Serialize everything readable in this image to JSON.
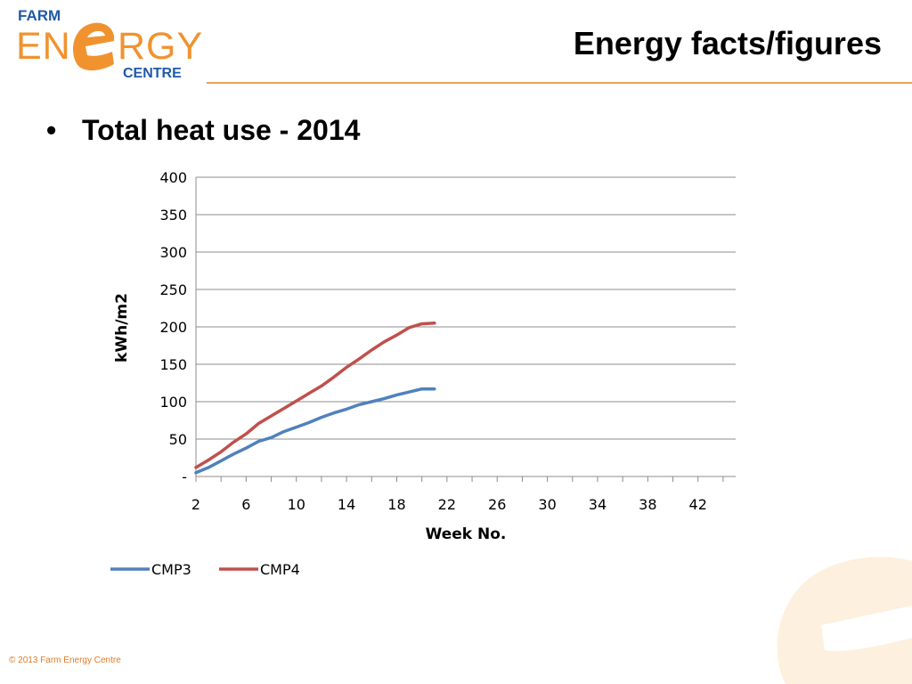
{
  "logo": {
    "line1": "FARM",
    "line2_left": "EN",
    "line2_right": "RGY",
    "line3": "CENTRE"
  },
  "header": {
    "title": "Energy facts/figures"
  },
  "bullet": {
    "symbol": "•",
    "text": "Total heat use - 2014"
  },
  "footer": {
    "copyright": "© 2013 Farm Energy Centre"
  },
  "colors": {
    "brand_orange": "#f0932f",
    "brand_blue": "#1f5aa6",
    "cmp3": "#4f81bd",
    "cmp4": "#c0504d"
  },
  "chart_data": {
    "type": "line",
    "title": "",
    "xlabel": "Week No.",
    "ylabel": "kWh/m2",
    "xlim": [
      2,
      45
    ],
    "ylim": [
      0,
      400
    ],
    "x_ticks": [
      2,
      6,
      10,
      14,
      18,
      22,
      26,
      30,
      34,
      38,
      42
    ],
    "y_ticks": [
      "-",
      "50",
      "100",
      "150",
      "200",
      "250",
      "300",
      "350",
      "400"
    ],
    "y_tick_values": [
      0,
      50,
      100,
      150,
      200,
      250,
      300,
      350,
      400
    ],
    "grid": "horizontal",
    "legend": "bottom-left",
    "series": [
      {
        "name": "CMP3",
        "color": "#4f81bd",
        "x": [
          2,
          3,
          4,
          5,
          6,
          7,
          8,
          9,
          10,
          11,
          12,
          13,
          14,
          15,
          16,
          17,
          18,
          19,
          20,
          21
        ],
        "y": [
          5,
          12,
          21,
          30,
          38,
          47,
          52,
          60,
          66,
          72,
          79,
          85,
          90,
          96,
          100,
          104,
          109,
          113,
          117,
          117
        ]
      },
      {
        "name": "CMP4",
        "color": "#c0504d",
        "x": [
          2,
          3,
          4,
          5,
          6,
          7,
          8,
          9,
          10,
          11,
          12,
          13,
          14,
          15,
          16,
          17,
          18,
          19,
          20,
          21
        ],
        "y": [
          12,
          22,
          33,
          46,
          57,
          71,
          81,
          91,
          101,
          111,
          121,
          133,
          146,
          157,
          169,
          180,
          189,
          199,
          204,
          205
        ]
      }
    ]
  }
}
